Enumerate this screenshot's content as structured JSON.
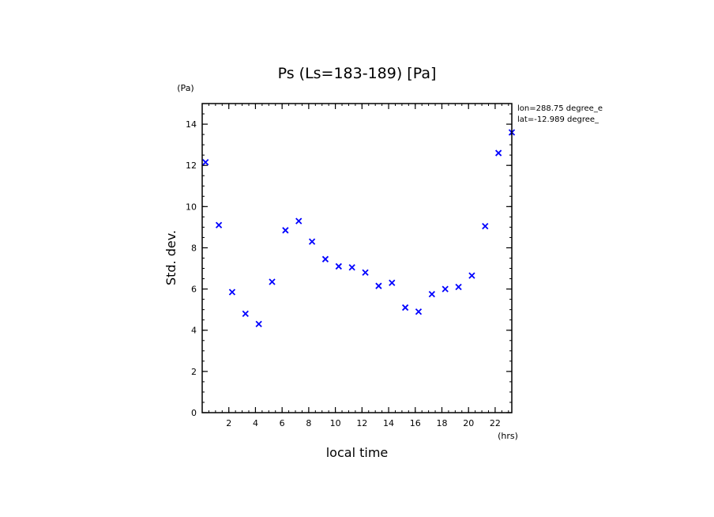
{
  "chart_data": {
    "type": "scatter",
    "title": "Ps (Ls=183-189) [Pa]",
    "xlabel": "local time",
    "ylabel": "Std. dev.",
    "x_unit": "(hrs)",
    "y_unit": "(Pa)",
    "annotations": [
      "lon=288.75 degree_e",
      "lat=-12.989 degree_"
    ],
    "xlim": [
      0,
      23.25
    ],
    "ylim": [
      0,
      15
    ],
    "x_ticks": [
      2,
      4,
      6,
      8,
      10,
      12,
      14,
      16,
      18,
      20,
      22
    ],
    "y_ticks": [
      0,
      2,
      4,
      6,
      8,
      10,
      12,
      14
    ],
    "x_minor_step": 0.5,
    "y_minor_step": 0.5,
    "grid": false,
    "marker": "x",
    "marker_color": "#0000ff",
    "series": [
      {
        "x": [
          0.25,
          1.25,
          2.25,
          3.25,
          4.25,
          5.25,
          6.25,
          7.25,
          8.25,
          9.25,
          10.25,
          11.25,
          12.25,
          13.25,
          14.25,
          15.25,
          16.25,
          17.25,
          18.25,
          19.25,
          20.25,
          21.25,
          22.25,
          23.25
        ],
        "values": [
          12.15,
          9.1,
          5.85,
          4.8,
          4.3,
          6.35,
          8.85,
          9.3,
          8.3,
          7.45,
          7.1,
          7.05,
          6.8,
          6.15,
          6.3,
          5.1,
          4.9,
          5.75,
          6.0,
          6.1,
          6.65,
          9.05,
          12.6,
          13.6
        ]
      }
    ]
  }
}
